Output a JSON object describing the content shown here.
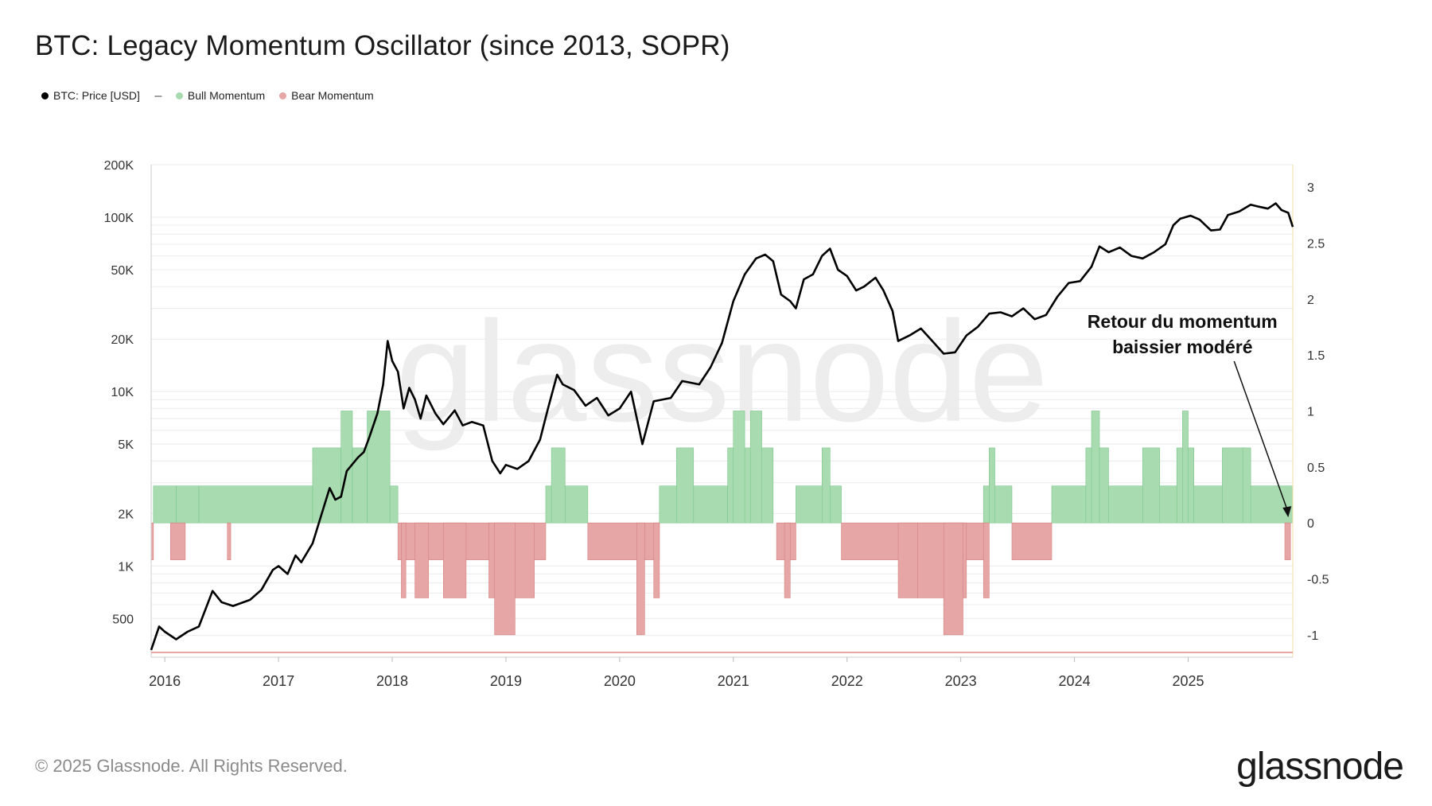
{
  "page": {
    "title": "BTC: Legacy Momentum Oscillator (since 2013, SOPR)",
    "footer": "© 2025 Glassnode. All Rights Reserved.",
    "brand": "glassnode",
    "watermark": "glassnode"
  },
  "legend": [
    {
      "label": "BTC: Price [USD]",
      "color": "#000000",
      "marker": "dot"
    },
    {
      "label": "",
      "color": "#333333",
      "marker": "dash"
    },
    {
      "label": "Bull Momentum",
      "color": "#a8dcb0",
      "marker": "dot"
    },
    {
      "label": "Bear Momentum",
      "color": "#e6a6a6",
      "marker": "dot"
    }
  ],
  "chart_data": {
    "type": "line+area",
    "title": "BTC: Legacy Momentum Oscillator (since 2013, SOPR)",
    "x_range": [
      2015.88,
      2025.92
    ],
    "x_ticks": [
      {
        "value": 2016,
        "label": "2016"
      },
      {
        "value": 2017,
        "label": "2017"
      },
      {
        "value": 2018,
        "label": "2018"
      },
      {
        "value": 2019,
        "label": "2019"
      },
      {
        "value": 2020,
        "label": "2020"
      },
      {
        "value": 2021,
        "label": "2021"
      },
      {
        "value": 2022,
        "label": "2022"
      },
      {
        "value": 2023,
        "label": "2023"
      },
      {
        "value": 2024,
        "label": "2024"
      },
      {
        "value": 2025,
        "label": "2025"
      }
    ],
    "y_left": {
      "scale": "log",
      "range": [
        300,
        200000
      ],
      "ticks": [
        {
          "value": 200000,
          "label": "200K"
        },
        {
          "value": 100000,
          "label": "100K"
        },
        {
          "value": 50000,
          "label": "50K"
        },
        {
          "value": 20000,
          "label": "20K"
        },
        {
          "value": 10000,
          "label": "10K"
        },
        {
          "value": 5000,
          "label": "5K"
        },
        {
          "value": 2000,
          "label": "2K"
        },
        {
          "value": 1000,
          "label": "1K"
        },
        {
          "value": 500,
          "label": "500"
        }
      ]
    },
    "y_right": {
      "scale": "linear",
      "range": [
        -1.2,
        3.2
      ],
      "ticks": [
        {
          "value": 3,
          "label": "3"
        },
        {
          "value": 2.5,
          "label": "2.5"
        },
        {
          "value": 2,
          "label": "2"
        },
        {
          "value": 1.5,
          "label": "1.5"
        },
        {
          "value": 1,
          "label": "1"
        },
        {
          "value": 0.5,
          "label": "0.5"
        },
        {
          "value": 0,
          "label": "0"
        },
        {
          "value": -0.5,
          "label": "-0.5"
        },
        {
          "value": -1,
          "label": "-1"
        }
      ]
    },
    "series": [
      {
        "name": "BTC: Price [USD]",
        "type": "line",
        "axis": "left",
        "color": "#000000",
        "points": [
          [
            2015.88,
            330
          ],
          [
            2015.95,
            450
          ],
          [
            2016.0,
            420
          ],
          [
            2016.1,
            380
          ],
          [
            2016.2,
            420
          ],
          [
            2016.3,
            450
          ],
          [
            2016.42,
            720
          ],
          [
            2016.5,
            620
          ],
          [
            2016.6,
            590
          ],
          [
            2016.75,
            640
          ],
          [
            2016.85,
            730
          ],
          [
            2016.95,
            950
          ],
          [
            2017.0,
            1000
          ],
          [
            2017.08,
            900
          ],
          [
            2017.15,
            1150
          ],
          [
            2017.2,
            1050
          ],
          [
            2017.3,
            1350
          ],
          [
            2017.4,
            2200
          ],
          [
            2017.45,
            2800
          ],
          [
            2017.5,
            2400
          ],
          [
            2017.55,
            2500
          ],
          [
            2017.6,
            3500
          ],
          [
            2017.7,
            4200
          ],
          [
            2017.75,
            4500
          ],
          [
            2017.8,
            5500
          ],
          [
            2017.87,
            7500
          ],
          [
            2017.92,
            11000
          ],
          [
            2017.96,
            19500
          ],
          [
            2018.0,
            15000
          ],
          [
            2018.05,
            13000
          ],
          [
            2018.1,
            8000
          ],
          [
            2018.15,
            10500
          ],
          [
            2018.2,
            9000
          ],
          [
            2018.25,
            7000
          ],
          [
            2018.3,
            9500
          ],
          [
            2018.38,
            7500
          ],
          [
            2018.45,
            6500
          ],
          [
            2018.55,
            7800
          ],
          [
            2018.62,
            6400
          ],
          [
            2018.7,
            6700
          ],
          [
            2018.8,
            6400
          ],
          [
            2018.88,
            4000
          ],
          [
            2018.95,
            3400
          ],
          [
            2019.0,
            3800
          ],
          [
            2019.1,
            3600
          ],
          [
            2019.2,
            4000
          ],
          [
            2019.3,
            5300
          ],
          [
            2019.37,
            8000
          ],
          [
            2019.45,
            12500
          ],
          [
            2019.5,
            11000
          ],
          [
            2019.6,
            10200
          ],
          [
            2019.7,
            8300
          ],
          [
            2019.8,
            9200
          ],
          [
            2019.9,
            7300
          ],
          [
            2020.0,
            8000
          ],
          [
            2020.1,
            10000
          ],
          [
            2020.2,
            5000
          ],
          [
            2020.3,
            8800
          ],
          [
            2020.45,
            9200
          ],
          [
            2020.55,
            11500
          ],
          [
            2020.7,
            11000
          ],
          [
            2020.8,
            13800
          ],
          [
            2020.9,
            19000
          ],
          [
            2021.0,
            33000
          ],
          [
            2021.1,
            47000
          ],
          [
            2021.2,
            58000
          ],
          [
            2021.28,
            61000
          ],
          [
            2021.35,
            56000
          ],
          [
            2021.42,
            36000
          ],
          [
            2021.5,
            33000
          ],
          [
            2021.55,
            30000
          ],
          [
            2021.62,
            44000
          ],
          [
            2021.7,
            47000
          ],
          [
            2021.78,
            60000
          ],
          [
            2021.85,
            66000
          ],
          [
            2021.92,
            50000
          ],
          [
            2022.0,
            46000
          ],
          [
            2022.08,
            38000
          ],
          [
            2022.15,
            40000
          ],
          [
            2022.25,
            45000
          ],
          [
            2022.32,
            38000
          ],
          [
            2022.4,
            29000
          ],
          [
            2022.45,
            19500
          ],
          [
            2022.55,
            21000
          ],
          [
            2022.65,
            23000
          ],
          [
            2022.75,
            19500
          ],
          [
            2022.85,
            16500
          ],
          [
            2022.95,
            16800
          ],
          [
            2023.05,
            21000
          ],
          [
            2023.15,
            23500
          ],
          [
            2023.25,
            28000
          ],
          [
            2023.35,
            28500
          ],
          [
            2023.45,
            27000
          ],
          [
            2023.55,
            30000
          ],
          [
            2023.65,
            26000
          ],
          [
            2023.75,
            27500
          ],
          [
            2023.85,
            35000
          ],
          [
            2023.95,
            42000
          ],
          [
            2024.05,
            43000
          ],
          [
            2024.15,
            52000
          ],
          [
            2024.22,
            68000
          ],
          [
            2024.3,
            63000
          ],
          [
            2024.4,
            67000
          ],
          [
            2024.5,
            60000
          ],
          [
            2024.6,
            58000
          ],
          [
            2024.7,
            63000
          ],
          [
            2024.8,
            70000
          ],
          [
            2024.87,
            90000
          ],
          [
            2024.93,
            98000
          ],
          [
            2025.02,
            102000
          ],
          [
            2025.1,
            97000
          ],
          [
            2025.2,
            84000
          ],
          [
            2025.28,
            85000
          ],
          [
            2025.35,
            103000
          ],
          [
            2025.45,
            108000
          ],
          [
            2025.55,
            118000
          ],
          [
            2025.62,
            115000
          ],
          [
            2025.7,
            112000
          ],
          [
            2025.77,
            120000
          ],
          [
            2025.82,
            110000
          ],
          [
            2025.88,
            106000
          ],
          [
            2025.92,
            88000
          ]
        ]
      },
      {
        "name": "Bull Momentum",
        "type": "area",
        "axis": "right",
        "color": "#a8dcb0",
        "segments": [
          [
            2015.9,
            2016.1,
            0.33
          ],
          [
            2016.1,
            2016.3,
            0.33
          ],
          [
            2016.3,
            2017.3,
            0.33
          ],
          [
            2017.3,
            2017.55,
            0.67
          ],
          [
            2017.55,
            2017.65,
            1.0
          ],
          [
            2017.65,
            2017.78,
            0.67
          ],
          [
            2017.78,
            2017.98,
            1.0
          ],
          [
            2017.98,
            2018.05,
            0.33
          ],
          [
            2019.35,
            2019.72,
            0.33
          ],
          [
            2019.4,
            2019.52,
            0.67
          ],
          [
            2020.35,
            2020.95,
            0.33
          ],
          [
            2020.5,
            2020.65,
            0.67
          ],
          [
            2020.95,
            2021.35,
            0.67
          ],
          [
            2021.0,
            2021.1,
            1.0
          ],
          [
            2021.15,
            2021.25,
            1.0
          ],
          [
            2021.55,
            2021.95,
            0.33
          ],
          [
            2021.78,
            2021.85,
            0.67
          ],
          [
            2023.2,
            2023.45,
            0.33
          ],
          [
            2023.25,
            2023.3,
            0.67
          ],
          [
            2023.8,
            2025.92,
            0.33
          ],
          [
            2024.1,
            2024.3,
            0.67
          ],
          [
            2024.15,
            2024.22,
            1.0
          ],
          [
            2024.6,
            2024.75,
            0.67
          ],
          [
            2024.9,
            2025.05,
            0.67
          ],
          [
            2024.95,
            2025.0,
            1.0
          ],
          [
            2025.3,
            2025.5,
            0.67
          ],
          [
            2025.48,
            2025.55,
            0.67
          ]
        ]
      },
      {
        "name": "Bear Momentum",
        "type": "area",
        "axis": "right",
        "color": "#e6a6a6",
        "segments": [
          [
            2015.88,
            2015.9,
            -0.33
          ],
          [
            2016.05,
            2016.18,
            -0.33
          ],
          [
            2016.55,
            2016.58,
            -0.33
          ],
          [
            2018.05,
            2019.35,
            -0.33
          ],
          [
            2018.08,
            2018.12,
            -0.67
          ],
          [
            2018.2,
            2018.32,
            -0.67
          ],
          [
            2018.45,
            2018.65,
            -0.67
          ],
          [
            2018.85,
            2019.25,
            -0.67
          ],
          [
            2018.9,
            2019.08,
            -1.0
          ],
          [
            2019.72,
            2020.35,
            -0.33
          ],
          [
            2020.15,
            2020.22,
            -1.0
          ],
          [
            2020.3,
            2020.35,
            -0.67
          ],
          [
            2021.38,
            2021.55,
            -0.33
          ],
          [
            2021.45,
            2021.5,
            -0.67
          ],
          [
            2021.95,
            2023.2,
            -0.33
          ],
          [
            2022.45,
            2022.62,
            -0.67
          ],
          [
            2022.62,
            2023.05,
            -0.67
          ],
          [
            2022.85,
            2023.02,
            -1.0
          ],
          [
            2023.45,
            2023.8,
            -0.33
          ],
          [
            2023.2,
            2023.25,
            -0.67
          ],
          [
            2025.85,
            2025.9,
            -0.33
          ]
        ]
      }
    ],
    "annotation": {
      "line1": "Retour du momentum",
      "line2": "baissier modéré",
      "target_x": 2025.88,
      "target_y_value": 0.05
    }
  }
}
